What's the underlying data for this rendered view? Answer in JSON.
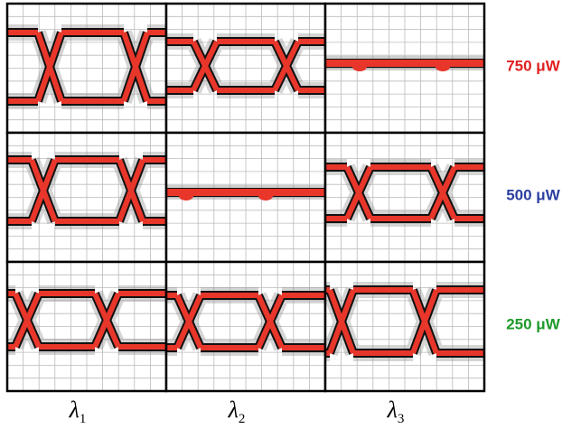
{
  "rows": [
    {
      "label": "750 μW",
      "color": "#e02020"
    },
    {
      "label": "500 μW",
      "color": "#2b3fa0"
    },
    {
      "label": "250 μW",
      "color": "#1f9a2a"
    }
  ],
  "columns": [
    {
      "symbol": "λ",
      "subscript": "1"
    },
    {
      "symbol": "λ",
      "subscript": "2"
    },
    {
      "symbol": "λ",
      "subscript": "3"
    }
  ]
}
